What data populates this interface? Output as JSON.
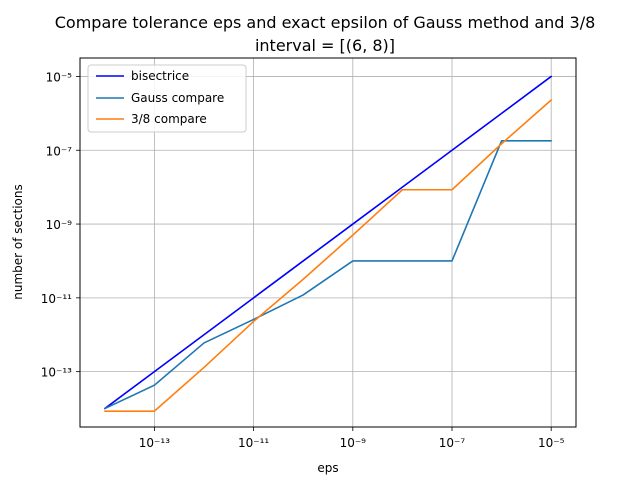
{
  "chart_data": {
    "type": "line",
    "title": [
      "Compare tolerance eps and exact epsilon of Gauss method and 3/8",
      "interval = [(6, 8)]"
    ],
    "xlabel": "eps",
    "ylabel": "number of sections",
    "xscale": "log",
    "yscale": "log",
    "xlim_exp": [
      -14.5,
      -4.5
    ],
    "ylim_exp": [
      -14.5,
      -4.5
    ],
    "xtick_exps": [
      -13,
      -11,
      -9,
      -7,
      -5
    ],
    "ytick_exps": [
      -13,
      -11,
      -9,
      -7,
      -5
    ],
    "xtick_labels": [
      "10⁻¹³",
      "10⁻¹¹",
      "10⁻⁹",
      "10⁻⁷",
      "10⁻⁵"
    ],
    "ytick_labels": [
      "10⁻¹³",
      "10⁻¹¹",
      "10⁻⁹",
      "10⁻⁷",
      "10⁻⁵"
    ],
    "grid": true,
    "legend_position": "top-left",
    "x": [
      1e-14,
      1e-13,
      1e-12,
      1e-11,
      1e-10,
      1e-09,
      1e-08,
      1e-07,
      1e-06,
      1e-05
    ],
    "series": [
      {
        "name": "bisectrice",
        "color": "#0000ff",
        "values": [
          1e-14,
          1e-13,
          1e-12,
          1e-11,
          1e-10,
          1e-09,
          1e-08,
          1e-07,
          1e-06,
          1e-05
        ]
      },
      {
        "name": "Gauss compare",
        "color": "#1f77b4",
        "values": [
          1e-14,
          4.3e-14,
          6e-13,
          2.6e-12,
          1.2e-11,
          1e-10,
          1e-10,
          1e-10,
          1.8e-07,
          1.8e-07
        ]
      },
      {
        "name": "3/8 compare",
        "color": "#ff7f0e",
        "values": [
          8.5e-15,
          8.5e-15,
          1.3e-13,
          2.3e-12,
          3.2e-11,
          5e-10,
          8.5e-09,
          8.5e-09,
          1.5e-07,
          2.3e-06
        ]
      }
    ]
  }
}
